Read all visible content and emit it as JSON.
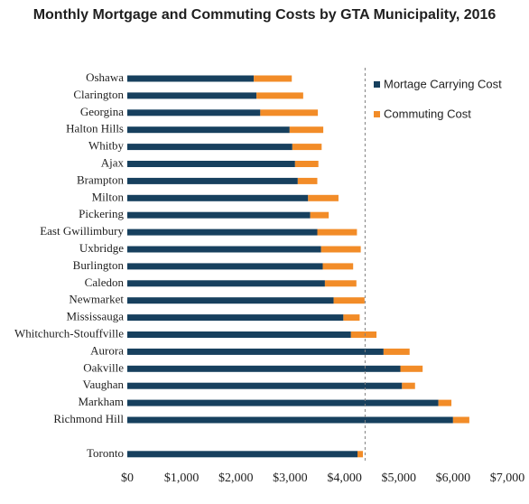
{
  "chart_data": {
    "type": "bar",
    "orientation": "horizontal",
    "stacked": true,
    "title": "Monthly Mortgage and Commuting Costs by GTA Municipality, 2016",
    "xlabel": "",
    "ylabel": "",
    "xlim": [
      0,
      7000
    ],
    "x_ticks": [
      0,
      1000,
      2000,
      3000,
      4000,
      5000,
      6000,
      7000
    ],
    "x_tick_labels": [
      "$0",
      "$1,000",
      "$2,000",
      "$3,000",
      "$4,000",
      "$5,000",
      "$6,000",
      "$7,000"
    ],
    "grid": false,
    "legend_position": "top-right",
    "reference_line": {
      "x": 4380,
      "style": "dashed",
      "color": "#808080"
    },
    "categories": [
      "Oshawa",
      "Clarington",
      "Georgina",
      "Halton Hills",
      "Whitby",
      "Ajax",
      "Brampton",
      "Milton",
      "Pickering",
      "East Gwillimbury",
      "Uxbridge",
      "Burlington",
      "Caledon",
      "Newmarket",
      "Mississauga",
      "Whitchurch-Stouffville",
      "Aurora",
      "Oakville",
      "Vaughan",
      "Markham",
      "Richmond Hill",
      "Toronto"
    ],
    "gap_before": [
      "Toronto"
    ],
    "series": [
      {
        "name": "Mortage Carrying Cost",
        "color": "#17405e",
        "values": [
          2330,
          2380,
          2450,
          2990,
          3040,
          3090,
          3140,
          3330,
          3370,
          3500,
          3570,
          3600,
          3640,
          3800,
          3980,
          4120,
          4720,
          5030,
          5060,
          5730,
          6000,
          4240
        ]
      },
      {
        "name": "Commuting Cost",
        "color": "#f28c28",
        "values": [
          700,
          860,
          1060,
          620,
          540,
          430,
          360,
          560,
          340,
          730,
          730,
          560,
          580,
          570,
          300,
          470,
          480,
          410,
          240,
          240,
          300,
          100
        ]
      }
    ]
  }
}
